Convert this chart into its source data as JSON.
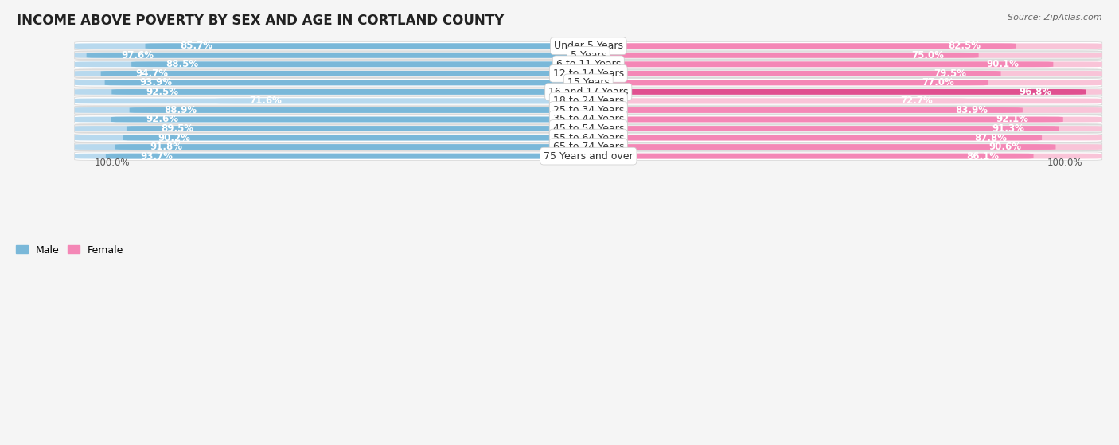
{
  "title": "INCOME ABOVE POVERTY BY SEX AND AGE IN CORTLAND COUNTY",
  "source": "Source: ZipAtlas.com",
  "categories": [
    "Under 5 Years",
    "5 Years",
    "6 to 11 Years",
    "12 to 14 Years",
    "15 Years",
    "16 and 17 Years",
    "18 to 24 Years",
    "25 to 34 Years",
    "35 to 44 Years",
    "45 to 54 Years",
    "55 to 64 Years",
    "65 to 74 Years",
    "75 Years and over"
  ],
  "male_values": [
    85.7,
    97.6,
    88.5,
    94.7,
    93.9,
    92.5,
    71.6,
    88.9,
    92.6,
    89.5,
    90.2,
    91.8,
    93.7
  ],
  "female_values": [
    82.5,
    75.0,
    90.1,
    79.5,
    77.0,
    96.8,
    72.7,
    83.9,
    92.1,
    91.3,
    87.8,
    90.6,
    86.1
  ],
  "male_color": "#7ab8d9",
  "male_color_light": "#b8d9ee",
  "female_color": "#f487b6",
  "female_color_light": "#f9c4d8",
  "female_color_dark": "#e05090",
  "bg_color": "#f5f5f5",
  "row_color_odd": "#ffffff",
  "row_color_even": "#ebebeb",
  "title_fontsize": 12,
  "source_fontsize": 8,
  "label_fontsize": 9,
  "value_fontsize": 8.5,
  "max_value": 100.0
}
